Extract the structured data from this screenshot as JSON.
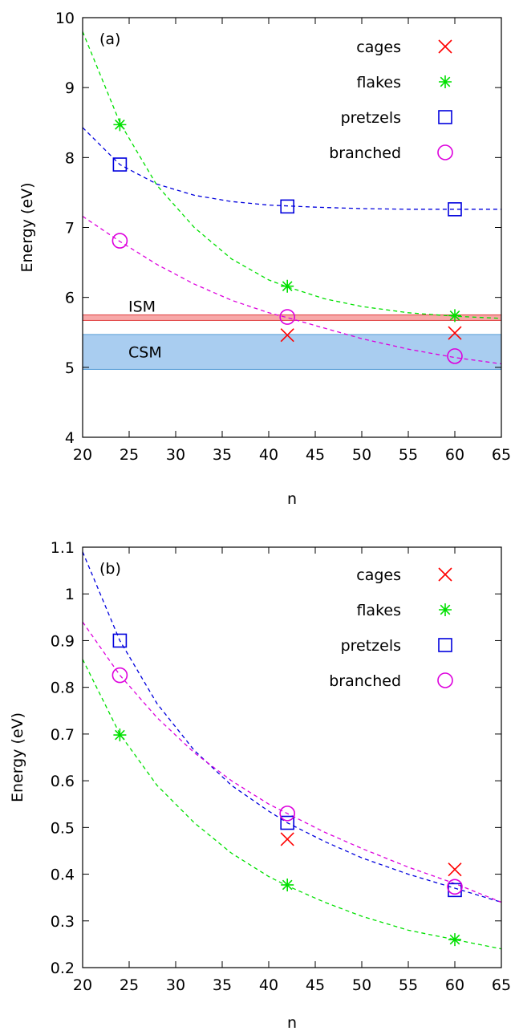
{
  "chart_data": [
    {
      "type": "scatter",
      "panel_label": "(a)",
      "xlabel": "n",
      "ylabel": "Energy (eV)",
      "xlim": [
        20,
        65
      ],
      "ylim": [
        4,
        10
      ],
      "xticks": [
        20,
        25,
        30,
        35,
        40,
        45,
        50,
        55,
        60,
        65
      ],
      "yticks": [
        4,
        5,
        6,
        7,
        8,
        9,
        10
      ],
      "ytick_labels": [
        "4",
        "5",
        "6",
        "7",
        "8",
        "9",
        "10"
      ],
      "legend_position": "top-right",
      "bands": [
        {
          "label": "ISM",
          "y": [
            5.67,
            5.75
          ],
          "fill": "#f7a8a8",
          "edge": "#e04040"
        },
        {
          "label": "CSM",
          "y": [
            4.97,
            5.47
          ],
          "fill": "#a9cdf0",
          "edge": "#5a9fd8"
        }
      ],
      "series": [
        {
          "name": "cages",
          "marker": "cross",
          "color": "#ff0000",
          "x": [
            42,
            60
          ],
          "y": [
            5.46,
            5.49
          ],
          "fit": null
        },
        {
          "name": "flakes",
          "marker": "star",
          "color": "#00e000",
          "x": [
            24,
            42,
            60
          ],
          "y": [
            8.47,
            6.16,
            5.74
          ],
          "fit": {
            "x": [
              20,
              24,
              28,
              32,
              36,
              40,
              42,
              46,
              50,
              55,
              60,
              65
            ],
            "y": [
              9.8,
              8.5,
              7.6,
              7.0,
              6.55,
              6.25,
              6.15,
              5.98,
              5.87,
              5.78,
              5.73,
              5.7
            ]
          }
        },
        {
          "name": "pretzels",
          "marker": "square",
          "color": "#0000dd",
          "x": [
            24,
            42,
            60
          ],
          "y": [
            7.9,
            7.3,
            7.26
          ],
          "fit": {
            "x": [
              20,
              24,
              28,
              32,
              36,
              40,
              45,
              50,
              55,
              60,
              65
            ],
            "y": [
              8.43,
              7.9,
              7.62,
              7.46,
              7.37,
              7.32,
              7.29,
              7.27,
              7.26,
              7.26,
              7.26
            ]
          }
        },
        {
          "name": "branched",
          "marker": "circle",
          "color": "#dd00dd",
          "x": [
            24,
            42,
            60
          ],
          "y": [
            6.81,
            5.72,
            5.16
          ],
          "fit": {
            "x": [
              20,
              24,
              28,
              32,
              36,
              40,
              42,
              46,
              50,
              55,
              60,
              65
            ],
            "y": [
              7.16,
              6.8,
              6.47,
              6.19,
              5.96,
              5.78,
              5.71,
              5.56,
              5.41,
              5.26,
              5.14,
              5.05
            ]
          }
        }
      ]
    },
    {
      "type": "scatter",
      "panel_label": "(b)",
      "xlabel": "n",
      "ylabel": "Energy (eV)",
      "xlim": [
        20,
        65
      ],
      "ylim": [
        0.2,
        1.1
      ],
      "xticks": [
        20,
        25,
        30,
        35,
        40,
        45,
        50,
        55,
        60,
        65
      ],
      "yticks": [
        0.2,
        0.3,
        0.4,
        0.5,
        0.6,
        0.7,
        0.8,
        0.9,
        1.0,
        1.1
      ],
      "ytick_labels": [
        "0.2",
        "0.3",
        "0.4",
        "0.5",
        "0.6",
        "0.7",
        "0.8",
        "0.9",
        "1",
        "1.1"
      ],
      "legend_position": "top-right",
      "bands": [],
      "series": [
        {
          "name": "cages",
          "marker": "cross",
          "color": "#ff0000",
          "x": [
            42,
            60
          ],
          "y": [
            0.475,
            0.41
          ],
          "fit": null
        },
        {
          "name": "flakes",
          "marker": "star",
          "color": "#00e000",
          "x": [
            24,
            42,
            60
          ],
          "y": [
            0.698,
            0.377,
            0.26
          ],
          "fit": {
            "x": [
              20,
              24,
              28,
              32,
              36,
              40,
              42,
              46,
              50,
              55,
              60,
              65
            ],
            "y": [
              0.86,
              0.7,
              0.59,
              0.51,
              0.445,
              0.395,
              0.375,
              0.34,
              0.31,
              0.28,
              0.26,
              0.24
            ]
          }
        },
        {
          "name": "pretzels",
          "marker": "square",
          "color": "#0000dd",
          "x": [
            24,
            42,
            60
          ],
          "y": [
            0.9,
            0.51,
            0.366
          ],
          "fit": {
            "x": [
              20,
              24,
              28,
              32,
              36,
              40,
              42,
              46,
              50,
              55,
              60,
              65
            ],
            "y": [
              1.09,
              0.9,
              0.765,
              0.665,
              0.59,
              0.535,
              0.51,
              0.47,
              0.435,
              0.4,
              0.37,
              0.34
            ]
          }
        },
        {
          "name": "branched",
          "marker": "circle",
          "color": "#dd00dd",
          "x": [
            24,
            42,
            60
          ],
          "y": [
            0.826,
            0.53,
            0.373
          ],
          "fit": {
            "x": [
              20,
              24,
              28,
              32,
              36,
              40,
              42,
              46,
              50,
              55,
              60,
              65
            ],
            "y": [
              0.94,
              0.826,
              0.735,
              0.66,
              0.6,
              0.55,
              0.53,
              0.49,
              0.455,
              0.415,
              0.38,
              0.34
            ]
          }
        }
      ]
    }
  ]
}
